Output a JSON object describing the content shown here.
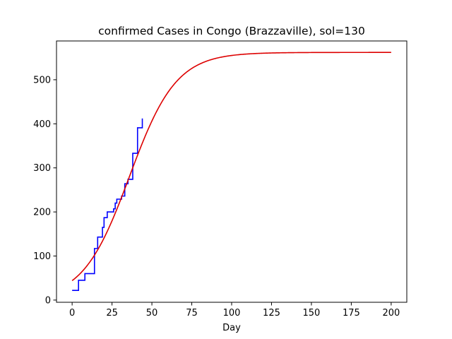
{
  "chart_data": {
    "type": "line",
    "title": "confirmed Cases in Congo (Brazzaville), sol=130",
    "xlabel": "Day",
    "ylabel": "",
    "xlim": [
      -9.8,
      209.8
    ],
    "ylim": [
      -5,
      588
    ],
    "x_ticks": [
      0,
      25,
      50,
      75,
      100,
      125,
      150,
      175,
      200
    ],
    "y_ticks": [
      0,
      100,
      200,
      300,
      400,
      500
    ],
    "grid": false,
    "legend": "none",
    "series": [
      {
        "color": "#0000ff",
        "style": "step",
        "points": [
          [
            0,
            22
          ],
          [
            1,
            22
          ],
          [
            2,
            22
          ],
          [
            3,
            22
          ],
          [
            4,
            45
          ],
          [
            5,
            45
          ],
          [
            6,
            45
          ],
          [
            7,
            45
          ],
          [
            8,
            60
          ],
          [
            9,
            60
          ],
          [
            10,
            60
          ],
          [
            11,
            60
          ],
          [
            12,
            60
          ],
          [
            13,
            60
          ],
          [
            14,
            117
          ],
          [
            15,
            117
          ],
          [
            16,
            143
          ],
          [
            17,
            143
          ],
          [
            18,
            143
          ],
          [
            19,
            165
          ],
          [
            20,
            187
          ],
          [
            21,
            187
          ],
          [
            22,
            200
          ],
          [
            23,
            200
          ],
          [
            24,
            200
          ],
          [
            25,
            200
          ],
          [
            26,
            207
          ],
          [
            27,
            220
          ],
          [
            28,
            229
          ],
          [
            29,
            229
          ],
          [
            30,
            229
          ],
          [
            31,
            236
          ],
          [
            32,
            236
          ],
          [
            33,
            264
          ],
          [
            34,
            264
          ],
          [
            35,
            274
          ],
          [
            36,
            274
          ],
          [
            37,
            274
          ],
          [
            38,
            333
          ],
          [
            39,
            333
          ],
          [
            40,
            333
          ],
          [
            41,
            391
          ],
          [
            42,
            391
          ],
          [
            43,
            391
          ],
          [
            44,
            412
          ]
        ]
      },
      {
        "color": "#dd0000",
        "style": "logistic",
        "K": 562,
        "r": 0.0685,
        "t0": 36,
        "x_range": [
          0,
          200
        ]
      }
    ]
  }
}
